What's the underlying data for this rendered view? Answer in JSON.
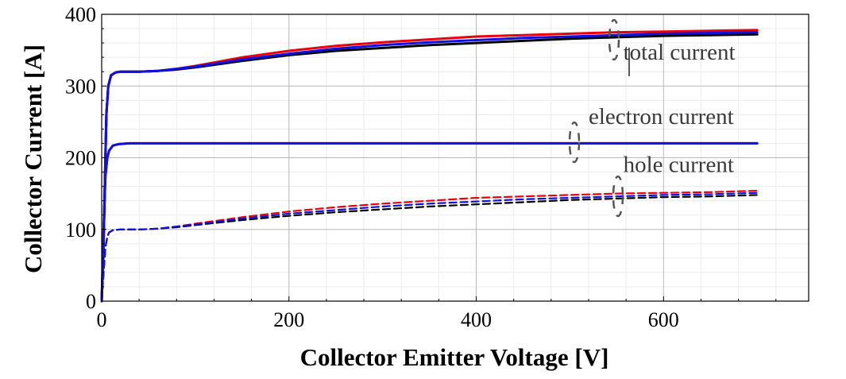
{
  "chart_data": {
    "type": "line",
    "xlabel": "Collector Emitter Voltage [V]",
    "ylabel": "Collector Current [A]",
    "xlim": [
      0,
      755
    ],
    "ylim": [
      0,
      400
    ],
    "x_ticks": [
      0,
      200,
      400,
      600
    ],
    "y_ticks": [
      0,
      100,
      200,
      300,
      400
    ],
    "grid": true,
    "colors": {
      "red": "#e8000b",
      "black": "#000000",
      "blue": "#1010e0"
    },
    "annotations": [
      {
        "text": "total current",
        "x": 557,
        "y": 337
      },
      {
        "text": "electron current",
        "x": 520,
        "y": 247
      },
      {
        "text": "hole current",
        "x": 557,
        "y": 180
      }
    ],
    "series": [
      {
        "group": "total current",
        "style": "solid",
        "color": "red",
        "x": [
          0,
          2,
          4,
          5,
          7,
          10,
          15,
          20,
          40,
          60,
          80,
          100,
          150,
          200,
          250,
          300,
          350,
          400,
          450,
          500,
          550,
          600,
          650,
          700
        ],
        "y": [
          0,
          80,
          200,
          260,
          300,
          315,
          319,
          320,
          320,
          321,
          324,
          328,
          340,
          349,
          356,
          361,
          365,
          369,
          371,
          373,
          375,
          376,
          377,
          378
        ]
      },
      {
        "group": "total current",
        "style": "solid",
        "color": "black",
        "x": [
          0,
          2,
          4,
          5,
          7,
          10,
          15,
          20,
          40,
          60,
          80,
          100,
          150,
          200,
          250,
          300,
          350,
          400,
          450,
          500,
          550,
          600,
          650,
          700
        ],
        "y": [
          0,
          80,
          200,
          260,
          300,
          315,
          319,
          320,
          320,
          321,
          323,
          326,
          335,
          343,
          349,
          353,
          357,
          360,
          363,
          366,
          368,
          370,
          371,
          372
        ]
      },
      {
        "group": "total current",
        "style": "solid",
        "color": "blue",
        "x": [
          0,
          2,
          4,
          5,
          7,
          10,
          15,
          20,
          40,
          60,
          80,
          100,
          150,
          200,
          250,
          300,
          350,
          400,
          450,
          500,
          550,
          600,
          650,
          700
        ],
        "y": [
          0,
          80,
          200,
          260,
          300,
          315,
          319,
          320,
          320,
          321,
          324,
          327,
          337,
          345,
          352,
          357,
          361,
          364,
          367,
          369,
          371,
          373,
          374,
          375
        ]
      },
      {
        "group": "electron current",
        "style": "solid",
        "color": "red",
        "x": [
          0,
          2,
          4,
          6,
          8,
          12,
          18,
          30,
          100,
          200,
          300,
          400,
          500,
          600,
          700
        ],
        "y": [
          0,
          100,
          175,
          200,
          210,
          217,
          219,
          220,
          220,
          220,
          220,
          220,
          220,
          220,
          220
        ]
      },
      {
        "group": "electron current",
        "style": "solid",
        "color": "blue",
        "x": [
          0,
          2,
          4,
          6,
          8,
          12,
          18,
          30,
          100,
          200,
          300,
          400,
          500,
          600,
          700
        ],
        "y": [
          0,
          100,
          175,
          200,
          210,
          217,
          219,
          220,
          220,
          220,
          220,
          220,
          220,
          220,
          220
        ]
      },
      {
        "group": "hole current",
        "style": "dashed",
        "color": "red",
        "x": [
          0,
          2,
          4,
          6,
          8,
          12,
          20,
          40,
          60,
          80,
          100,
          150,
          200,
          250,
          300,
          350,
          400,
          450,
          500,
          550,
          600,
          650,
          700
        ],
        "y": [
          0,
          40,
          75,
          90,
          96,
          99,
          100,
          100,
          101,
          104,
          108,
          117,
          125,
          131,
          136,
          140,
          144,
          146,
          148,
          150,
          151,
          152,
          154
        ]
      },
      {
        "group": "hole current",
        "style": "dashed",
        "color": "black",
        "x": [
          0,
          2,
          4,
          6,
          8,
          12,
          20,
          40,
          60,
          80,
          100,
          150,
          200,
          250,
          300,
          350,
          400,
          450,
          500,
          550,
          600,
          650,
          700
        ],
        "y": [
          0,
          40,
          75,
          90,
          96,
          99,
          100,
          100,
          101,
          103,
          106,
          113,
          119,
          124,
          128,
          132,
          135,
          138,
          141,
          143,
          145,
          146,
          148
        ]
      },
      {
        "group": "hole current",
        "style": "dashed",
        "color": "blue",
        "x": [
          0,
          2,
          4,
          6,
          8,
          12,
          20,
          40,
          60,
          80,
          100,
          150,
          200,
          250,
          300,
          350,
          400,
          450,
          500,
          550,
          600,
          650,
          700
        ],
        "y": [
          0,
          40,
          75,
          90,
          96,
          99,
          100,
          100,
          101,
          104,
          107,
          115,
          122,
          127,
          132,
          136,
          139,
          142,
          144,
          146,
          148,
          149,
          151
        ]
      }
    ]
  }
}
